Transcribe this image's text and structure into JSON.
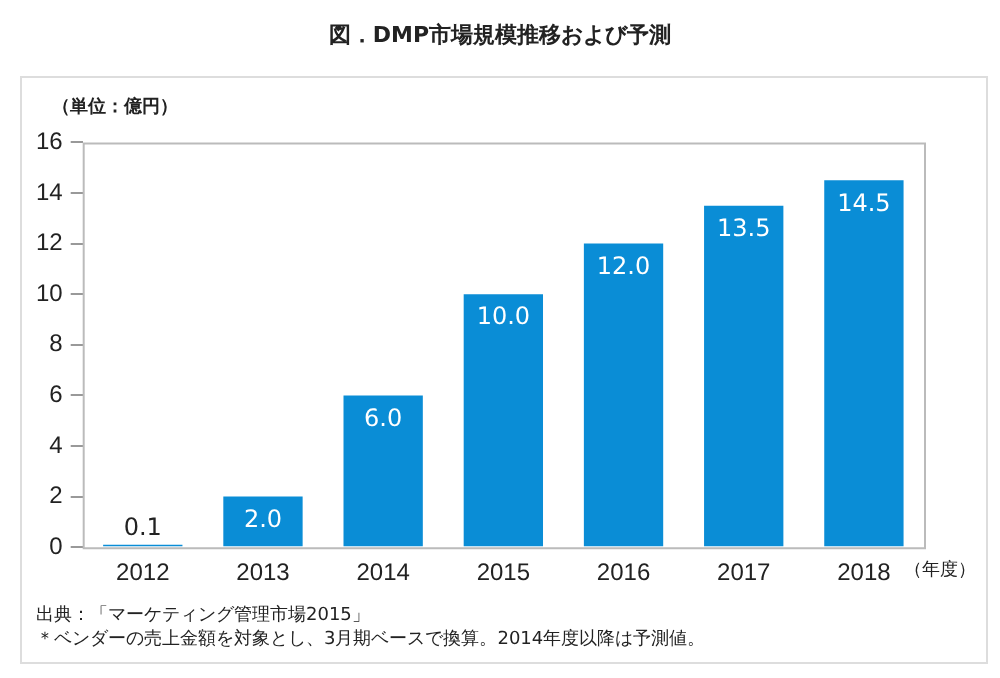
{
  "chart_data": {
    "type": "bar",
    "title": "図．DMP市場規模推移および予測",
    "ylabel": "（単位：億円）",
    "xlabel": "（年度）",
    "categories": [
      "2012",
      "2013",
      "2014",
      "2015",
      "2016",
      "2017",
      "2018"
    ],
    "values": [
      0.1,
      2.0,
      6.0,
      10.0,
      12.0,
      13.5,
      14.5
    ],
    "value_labels": [
      "0.1",
      "2.0",
      "6.0",
      "10.0",
      "12.0",
      "13.5",
      "14.5"
    ],
    "color": "#0a8dd6",
    "ylim": [
      0,
      16
    ],
    "yticks": [
      0,
      2,
      4,
      6,
      8,
      10,
      12,
      14,
      16
    ],
    "grid": false,
    "annotations": [
      "出典：「マーケティング管理市場2015」",
      "＊ベンダーの売上金額を対象とし、3月期ベースで換算。2014年度以降は予測値。"
    ]
  }
}
